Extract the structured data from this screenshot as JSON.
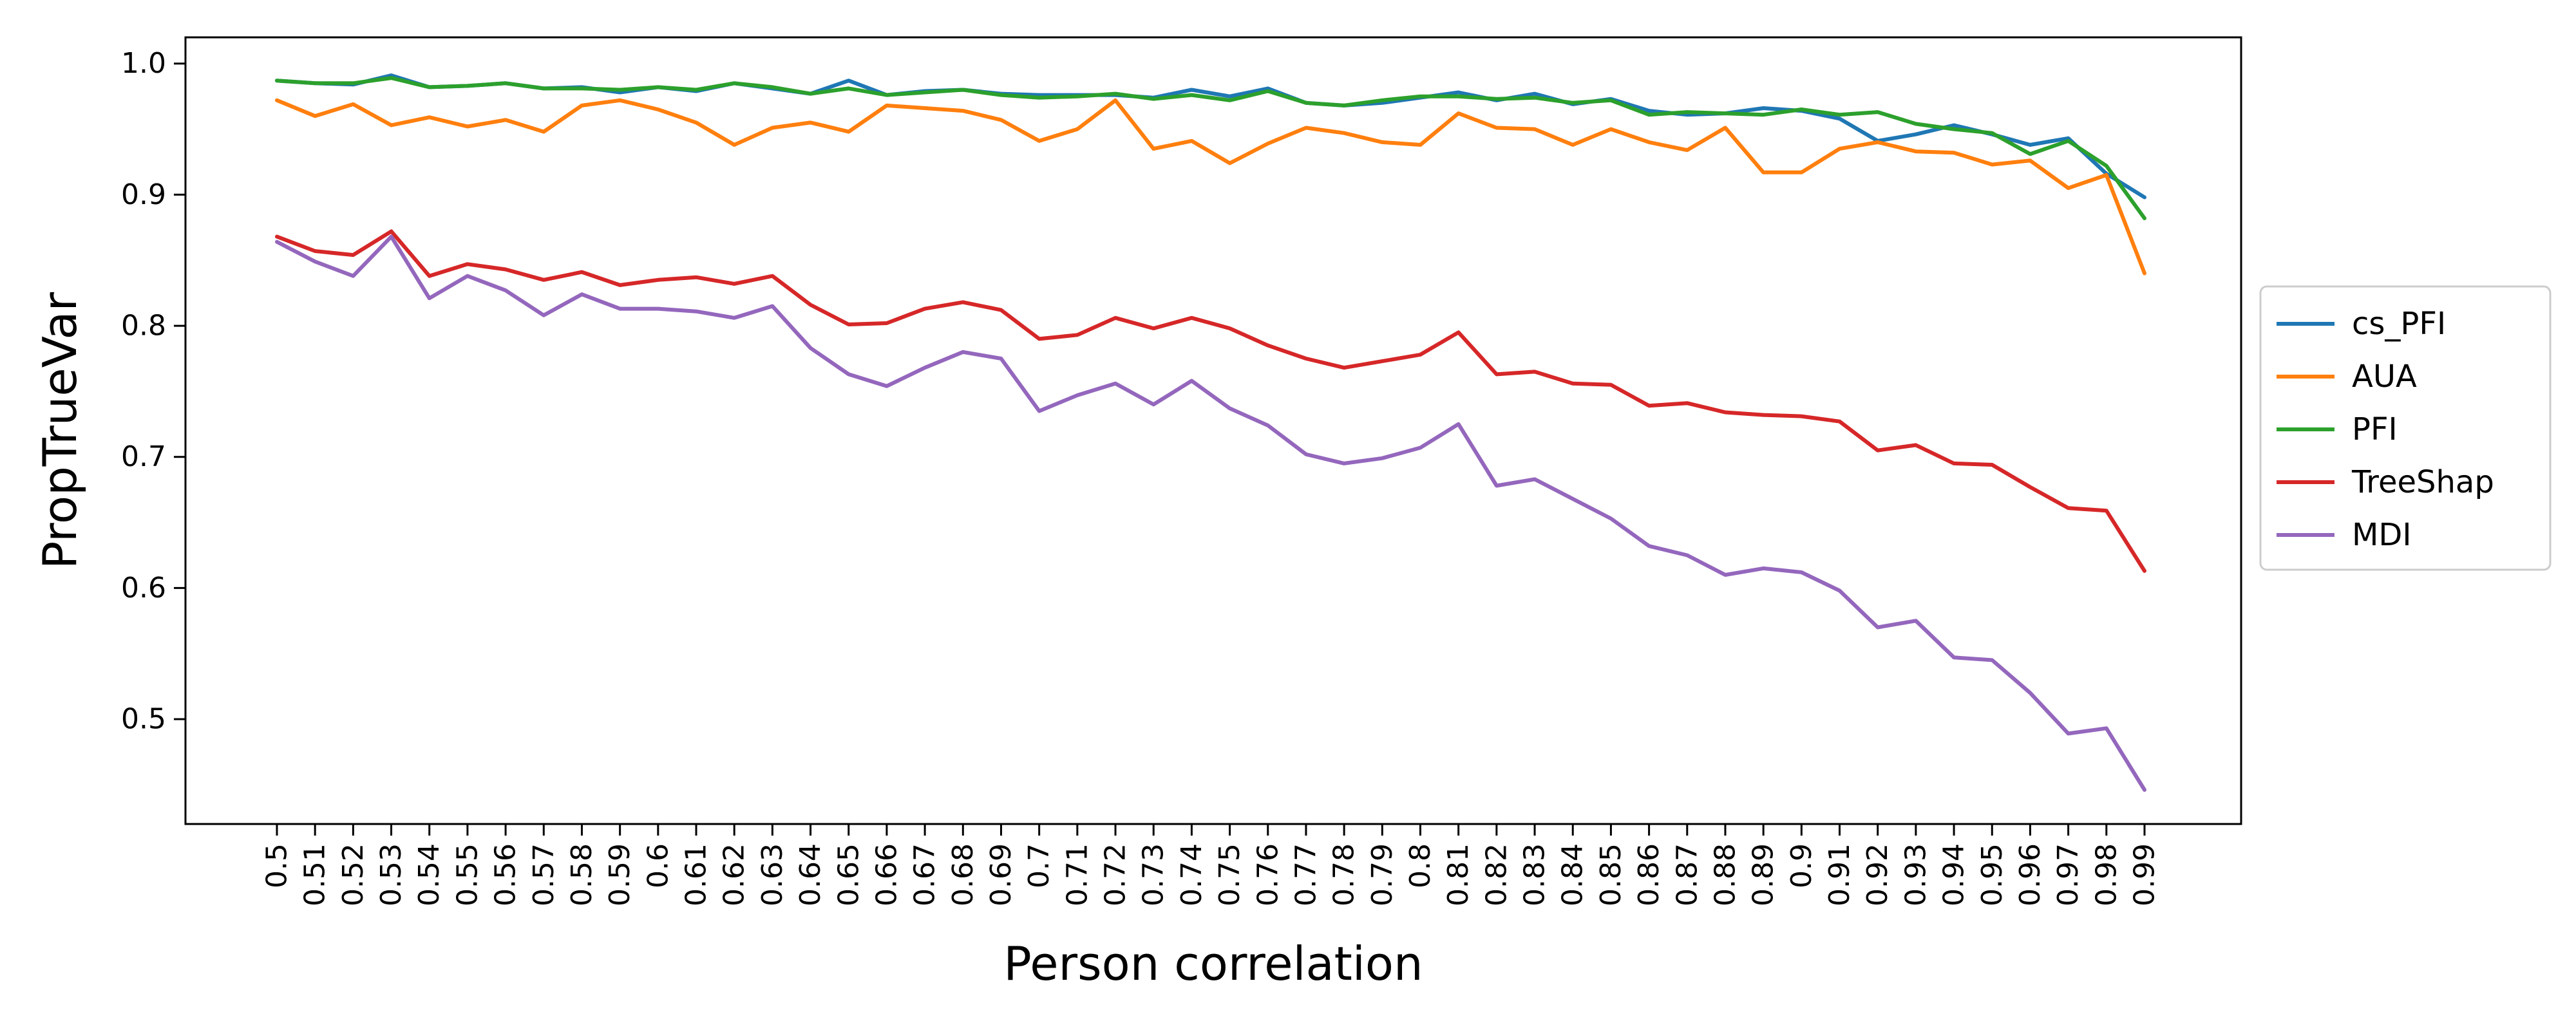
{
  "chart_data": {
    "type": "line",
    "title": "",
    "xlabel": "Person correlation",
    "ylabel": "PropTrueVar",
    "x": [
      "0.5",
      "0.51",
      "0.52",
      "0.53",
      "0.54",
      "0.55",
      "0.56",
      "0.57",
      "0.58",
      "0.59",
      "0.6",
      "0.61",
      "0.62",
      "0.63",
      "0.64",
      "0.65",
      "0.66",
      "0.67",
      "0.68",
      "0.69",
      "0.7",
      "0.71",
      "0.72",
      "0.73",
      "0.74",
      "0.75",
      "0.76",
      "0.77",
      "0.78",
      "0.79",
      "0.8",
      "0.81",
      "0.82",
      "0.83",
      "0.84",
      "0.85",
      "0.86",
      "0.87",
      "0.88",
      "0.89",
      "0.9",
      "0.91",
      "0.92",
      "0.93",
      "0.94",
      "0.95",
      "0.96",
      "0.97",
      "0.98",
      "0.99"
    ],
    "ylim": [
      0.42,
      1.02
    ],
    "yticks": [
      0.5,
      0.6,
      0.7,
      0.8,
      0.9,
      1.0
    ],
    "ytick_labels": [
      "0.5",
      "0.6",
      "0.7",
      "0.8",
      "0.9",
      "1.0"
    ],
    "grid": false,
    "legend_position": "right",
    "series": [
      {
        "name": "cs_PFI",
        "color": "#1f77b4",
        "values": [
          0.987,
          0.985,
          0.984,
          0.991,
          0.982,
          0.983,
          0.985,
          0.981,
          0.982,
          0.978,
          0.982,
          0.979,
          0.985,
          0.981,
          0.977,
          0.987,
          0.976,
          0.979,
          0.98,
          0.977,
          0.976,
          0.976,
          0.976,
          0.974,
          0.98,
          0.975,
          0.981,
          0.97,
          0.968,
          0.97,
          0.974,
          0.978,
          0.972,
          0.977,
          0.969,
          0.973,
          0.964,
          0.961,
          0.962,
          0.966,
          0.964,
          0.958,
          0.941,
          0.946,
          0.953,
          0.946,
          0.938,
          0.943,
          0.916,
          0.898
        ]
      },
      {
        "name": "AUA",
        "color": "#ff7f0e",
        "values": [
          0.972,
          0.96,
          0.969,
          0.953,
          0.959,
          0.952,
          0.957,
          0.948,
          0.968,
          0.972,
          0.965,
          0.955,
          0.938,
          0.951,
          0.955,
          0.948,
          0.968,
          0.966,
          0.964,
          0.957,
          0.941,
          0.95,
          0.972,
          0.935,
          0.941,
          0.924,
          0.939,
          0.951,
          0.947,
          0.94,
          0.938,
          0.962,
          0.951,
          0.95,
          0.938,
          0.95,
          0.94,
          0.934,
          0.951,
          0.917,
          0.917,
          0.935,
          0.94,
          0.933,
          0.932,
          0.923,
          0.926,
          0.905,
          0.915,
          0.84
        ]
      },
      {
        "name": "PFI",
        "color": "#2ca02c",
        "values": [
          0.987,
          0.985,
          0.985,
          0.989,
          0.982,
          0.983,
          0.985,
          0.981,
          0.981,
          0.98,
          0.982,
          0.98,
          0.985,
          0.982,
          0.977,
          0.981,
          0.976,
          0.978,
          0.98,
          0.976,
          0.974,
          0.975,
          0.977,
          0.973,
          0.976,
          0.972,
          0.979,
          0.97,
          0.968,
          0.972,
          0.975,
          0.975,
          0.973,
          0.974,
          0.97,
          0.972,
          0.961,
          0.963,
          0.962,
          0.961,
          0.965,
          0.961,
          0.963,
          0.954,
          0.95,
          0.947,
          0.931,
          0.941,
          0.922,
          0.882
        ]
      },
      {
        "name": "TreeShap",
        "color": "#d62728",
        "values": [
          0.868,
          0.857,
          0.854,
          0.872,
          0.838,
          0.847,
          0.843,
          0.835,
          0.841,
          0.831,
          0.835,
          0.837,
          0.832,
          0.838,
          0.816,
          0.801,
          0.802,
          0.813,
          0.818,
          0.812,
          0.79,
          0.793,
          0.806,
          0.798,
          0.806,
          0.798,
          0.785,
          0.775,
          0.768,
          0.773,
          0.778,
          0.795,
          0.763,
          0.765,
          0.756,
          0.755,
          0.739,
          0.741,
          0.734,
          0.732,
          0.731,
          0.727,
          0.705,
          0.709,
          0.695,
          0.694,
          0.677,
          0.661,
          0.659,
          0.613
        ]
      },
      {
        "name": "MDI",
        "color": "#9467bd",
        "values": [
          0.864,
          0.849,
          0.838,
          0.868,
          0.821,
          0.838,
          0.827,
          0.808,
          0.824,
          0.813,
          0.813,
          0.811,
          0.806,
          0.815,
          0.783,
          0.763,
          0.754,
          0.768,
          0.78,
          0.775,
          0.735,
          0.747,
          0.756,
          0.74,
          0.758,
          0.737,
          0.724,
          0.702,
          0.695,
          0.699,
          0.707,
          0.725,
          0.678,
          0.683,
          0.668,
          0.653,
          0.632,
          0.625,
          0.61,
          0.615,
          0.612,
          0.598,
          0.57,
          0.575,
          0.547,
          0.545,
          0.52,
          0.489,
          0.493,
          0.446
        ]
      }
    ]
  }
}
